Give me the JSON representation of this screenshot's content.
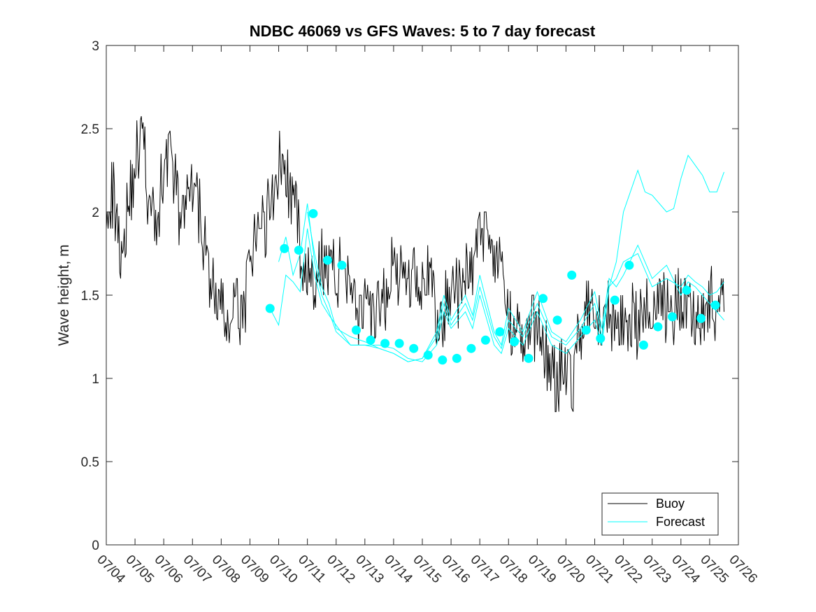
{
  "chart_data": {
    "type": "line",
    "title": "NDBC 46069 vs GFS Waves: 5 to 7 day forecast",
    "xlabel": "",
    "ylabel": "Wave height, m",
    "xlim": [
      "07/04",
      "07/26"
    ],
    "ylim": [
      0,
      3
    ],
    "x_tick_labels": [
      "07/04",
      "07/05",
      "07/06",
      "07/07",
      "07/08",
      "07/09",
      "07/10",
      "07/11",
      "07/12",
      "07/13",
      "07/14",
      "07/15",
      "07/16",
      "07/17",
      "07/18",
      "07/19",
      "07/20",
      "07/21",
      "07/22",
      "07/23",
      "07/24",
      "07/25",
      "07/26"
    ],
    "y_ticks": [
      0,
      0.5,
      1,
      1.5,
      2,
      2.5,
      3
    ],
    "y_tick_labels": [
      "0",
      "0.5",
      "1",
      "1.5",
      "2",
      "2.5",
      "3"
    ],
    "grid": false,
    "legend": {
      "position": "bottom-right",
      "entries": [
        "Buoy",
        "Forecast"
      ]
    },
    "colors": {
      "buoy": "#000000",
      "forecast": "#00ffff",
      "marker": "#00ffff"
    },
    "series": [
      {
        "name": "Buoy",
        "x_days": [
          0.0,
          0.25,
          0.5,
          0.75,
          1.0,
          1.25,
          1.5,
          1.75,
          2.0,
          2.25,
          2.5,
          2.75,
          3.0,
          3.25,
          3.5,
          3.75,
          4.0,
          4.25,
          4.5,
          4.75,
          5.0,
          5.25,
          5.5,
          5.75,
          6.0,
          6.25,
          6.5,
          6.75,
          7.0,
          7.25,
          7.5,
          7.75,
          8.0,
          8.25,
          8.5,
          8.75,
          9.0,
          9.25,
          9.5,
          9.75,
          10.0,
          10.25,
          10.5,
          10.75,
          11.0,
          11.25,
          11.5,
          11.75,
          12.0,
          12.25,
          12.5,
          12.75,
          13.0,
          13.25,
          13.5,
          13.75,
          14.0,
          14.25,
          14.5,
          14.75,
          15.0,
          15.25,
          15.5,
          15.75,
          16.0,
          16.25,
          16.5,
          16.75,
          17.0,
          17.25,
          17.5,
          17.75,
          18.0,
          18.25,
          18.5,
          18.75,
          19.0,
          19.25,
          19.5,
          19.75,
          20.0,
          20.25,
          20.5,
          20.75,
          21.0,
          21.25,
          21.5
        ],
        "values": [
          2.1,
          2.1,
          1.8,
          2.0,
          2.3,
          2.5,
          2.0,
          1.9,
          2.3,
          2.4,
          2.0,
          2.0,
          2.1,
          2.0,
          1.7,
          1.5,
          1.4,
          1.3,
          1.4,
          1.4,
          1.6,
          1.9,
          1.9,
          2.1,
          2.3,
          2.2,
          2.1,
          1.8,
          1.6,
          1.5,
          1.7,
          1.7,
          1.6,
          1.7,
          1.6,
          1.4,
          1.4,
          1.3,
          1.4,
          1.5,
          1.7,
          1.6,
          1.6,
          1.7,
          1.6,
          1.6,
          1.3,
          1.4,
          1.6,
          1.5,
          1.6,
          1.7,
          1.9,
          1.9,
          1.8,
          1.6,
          1.3,
          1.4,
          1.2,
          1.3,
          1.3,
          1.2,
          1.0,
          1.0,
          1.1,
          1.0,
          1.3,
          1.4,
          1.3,
          1.3,
          1.4,
          1.3,
          1.3,
          1.4,
          1.3,
          1.4,
          1.4,
          1.5,
          1.4,
          1.4,
          1.5,
          1.5,
          1.4,
          1.4,
          1.5,
          1.4,
          1.4
        ]
      },
      {
        "name": "Forecast",
        "runs": [
          {
            "x_days": [
              5.7,
              6.0,
              6.25,
              6.5,
              6.75,
              7.0,
              7.25,
              7.5,
              7.75,
              8.0,
              8.5,
              9.0,
              9.5,
              10.0,
              10.5,
              11.0,
              11.5,
              11.75,
              12.0,
              12.5,
              12.75,
              13.0,
              13.5,
              13.75,
              14.0,
              14.5,
              15.0,
              15.5,
              16.0,
              16.5,
              17.0,
              17.25,
              17.5,
              17.75,
              18.0,
              18.5,
              18.75,
              19.0,
              19.5,
              19.75,
              20.0,
              20.25,
              20.5,
              20.75,
              21.0,
              21.25,
              21.5
            ],
            "values": [
              1.42,
              1.32,
              1.62,
              1.58,
              1.52,
              1.9,
              1.62,
              1.45,
              1.38,
              1.32,
              1.2,
              1.2,
              1.2,
              1.18,
              1.12,
              1.1,
              1.2,
              1.4,
              1.3,
              1.4,
              1.3,
              1.5,
              1.2,
              1.15,
              1.3,
              1.2,
              1.4,
              1.2,
              1.15,
              1.25,
              1.35,
              1.2,
              1.55,
              1.7,
              2.0,
              2.25,
              2.12,
              2.1,
              2.0,
              2.02,
              2.2,
              2.34,
              2.28,
              2.22,
              2.12,
              2.12,
              2.24
            ]
          },
          {
            "x_days": [
              6.0,
              6.25,
              6.5,
              6.75,
              7.0,
              7.25,
              7.5,
              7.75,
              8.0,
              8.5,
              9.0,
              9.5,
              10.0,
              10.5,
              11.0,
              11.5,
              11.75,
              12.0,
              12.5,
              12.75,
              13.0,
              13.5,
              13.75,
              14.0,
              14.5,
              15.0,
              15.5,
              16.0,
              16.5,
              17.0,
              17.25,
              17.5,
              17.75,
              18.0,
              18.5,
              19.0,
              19.5,
              20.0,
              20.25,
              20.5,
              20.75,
              21.0,
              21.25,
              21.5
            ],
            "values": [
              1.7,
              1.85,
              1.62,
              1.75,
              2.05,
              1.7,
              1.5,
              1.4,
              1.28,
              1.2,
              1.2,
              1.18,
              1.15,
              1.1,
              1.12,
              1.25,
              1.45,
              1.32,
              1.45,
              1.35,
              1.55,
              1.25,
              1.18,
              1.35,
              1.25,
              1.45,
              1.25,
              1.2,
              1.3,
              1.45,
              1.25,
              1.55,
              1.6,
              1.7,
              1.75,
              1.55,
              1.6,
              1.55,
              1.62,
              1.58,
              1.55,
              1.5,
              1.52,
              1.58
            ]
          },
          {
            "x_days": [
              7.0,
              7.25,
              7.5,
              7.75,
              8.0,
              8.5,
              9.0,
              9.5,
              10.0,
              10.5,
              11.0,
              11.5,
              11.75,
              12.0,
              12.5,
              12.75,
              13.0,
              13.5,
              13.75,
              14.0,
              14.5,
              15.0,
              15.5,
              16.0,
              16.5,
              17.0,
              17.25,
              17.5,
              17.75,
              18.0,
              18.5,
              19.0,
              19.5,
              20.0,
              20.25,
              20.5,
              20.75,
              21.0,
              21.25,
              21.5
            ],
            "values": [
              2.0,
              1.75,
              1.55,
              1.45,
              1.3,
              1.25,
              1.22,
              1.18,
              1.15,
              1.1,
              1.12,
              1.28,
              1.5,
              1.35,
              1.5,
              1.38,
              1.62,
              1.28,
              1.2,
              1.42,
              1.28,
              1.52,
              1.28,
              1.22,
              1.35,
              1.52,
              1.3,
              1.6,
              1.55,
              1.62,
              1.8,
              1.6,
              1.68,
              1.5,
              1.58,
              1.55,
              1.5,
              1.45,
              1.4,
              1.35
            ]
          }
        ]
      },
      {
        "name": "forecast-markers",
        "x_days": [
          5.7,
          6.2,
          6.7,
          7.2,
          7.7,
          8.2,
          8.7,
          9.2,
          9.7,
          10.2,
          10.7,
          11.2,
          11.7,
          12.2,
          12.7,
          13.2,
          13.7,
          14.2,
          14.7,
          15.2,
          15.7,
          16.2,
          16.7,
          17.2,
          17.7,
          18.2,
          18.7,
          19.2,
          19.7,
          20.2,
          20.7,
          21.2
        ],
        "values": [
          1.42,
          1.78,
          1.77,
          1.99,
          1.71,
          1.68,
          1.29,
          1.23,
          1.21,
          1.21,
          1.18,
          1.14,
          1.11,
          1.12,
          1.18,
          1.23,
          1.28,
          1.22,
          1.12,
          1.48,
          1.35,
          1.62,
          1.29,
          1.24,
          1.47,
          1.68,
          1.2,
          1.31,
          1.37,
          1.53,
          1.36,
          1.44
        ]
      }
    ]
  }
}
